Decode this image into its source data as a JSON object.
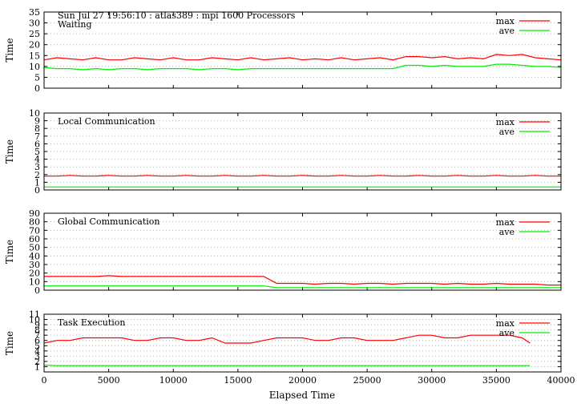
{
  "header": "Sun Jul 27 19:56:10 : atlas389 : mpi 1600 Processors",
  "chart_data": [
    {
      "type": "line",
      "title": "Waiting",
      "ylabel": "Time",
      "xlim": [
        0,
        40000
      ],
      "ylim": [
        0,
        35
      ],
      "yticks": [
        0,
        5,
        10,
        15,
        20,
        25,
        30,
        35
      ],
      "grid": "horizontal dotted",
      "legend_position": "top-right",
      "series": [
        {
          "name": "max",
          "color": "#ff0000",
          "x": [
            0,
            1000,
            2000,
            3000,
            4000,
            5000,
            6000,
            7000,
            8000,
            9000,
            10000,
            11000,
            12000,
            13000,
            14000,
            15000,
            16000,
            17000,
            18000,
            19000,
            20000,
            21000,
            22000,
            23000,
            24000,
            25000,
            26000,
            27000,
            28000,
            29000,
            30000,
            31000,
            32000,
            33000,
            34000,
            35000,
            36000,
            37000,
            38000,
            39000,
            40000
          ],
          "values": [
            13,
            14,
            13.5,
            13,
            14,
            13,
            13,
            14,
            13.5,
            13,
            14,
            13,
            13,
            14,
            13.5,
            13,
            14,
            13,
            13.5,
            14,
            13,
            13.5,
            13,
            14,
            13,
            13.5,
            14,
            13,
            14.5,
            14.5,
            14,
            14.5,
            13.5,
            14,
            13.5,
            15.5,
            15,
            15.5,
            14,
            13.5,
            13
          ]
        },
        {
          "name": "ave",
          "color": "#00ee00",
          "x": [
            0,
            1000,
            2000,
            3000,
            4000,
            5000,
            6000,
            7000,
            8000,
            9000,
            10000,
            11000,
            12000,
            13000,
            14000,
            15000,
            16000,
            17000,
            18000,
            19000,
            20000,
            21000,
            22000,
            23000,
            24000,
            25000,
            26000,
            27000,
            28000,
            29000,
            30000,
            31000,
            32000,
            33000,
            34000,
            35000,
            36000,
            37000,
            38000,
            39000,
            40000
          ],
          "values": [
            9.5,
            9,
            9,
            8.5,
            9,
            8.5,
            9,
            9,
            8.5,
            9,
            9,
            9,
            8.5,
            9,
            9,
            8.5,
            9,
            9,
            9,
            9,
            9,
            9,
            9,
            9,
            9,
            9,
            9,
            9,
            10.5,
            10.5,
            10,
            10.5,
            10,
            10,
            10,
            11,
            11,
            10.5,
            10,
            10,
            9.5
          ]
        }
      ]
    },
    {
      "type": "line",
      "title": "Local Communication",
      "ylabel": "Time",
      "xlim": [
        0,
        40000
      ],
      "ylim": [
        0,
        10
      ],
      "yticks": [
        0,
        1,
        2,
        3,
        4,
        5,
        6,
        7,
        8,
        9,
        10
      ],
      "grid": "horizontal dotted",
      "legend_position": "top-right",
      "series": [
        {
          "name": "max",
          "color": "#ff0000",
          "x": [
            0,
            1000,
            2000,
            3000,
            4000,
            5000,
            6000,
            7000,
            8000,
            9000,
            10000,
            11000,
            12000,
            13000,
            14000,
            15000,
            16000,
            17000,
            18000,
            19000,
            20000,
            21000,
            22000,
            23000,
            24000,
            25000,
            26000,
            27000,
            28000,
            29000,
            30000,
            31000,
            32000,
            33000,
            34000,
            35000,
            36000,
            37000,
            38000,
            39000,
            40000
          ],
          "values": [
            1.8,
            1.8,
            1.9,
            1.8,
            1.8,
            1.9,
            1.8,
            1.8,
            1.9,
            1.8,
            1.8,
            1.9,
            1.8,
            1.8,
            1.9,
            1.8,
            1.8,
            1.9,
            1.8,
            1.8,
            1.9,
            1.8,
            1.8,
            1.9,
            1.8,
            1.8,
            1.9,
            1.8,
            1.8,
            1.9,
            1.8,
            1.8,
            1.9,
            1.8,
            1.8,
            1.9,
            1.8,
            1.8,
            1.9,
            1.8,
            1.8
          ]
        },
        {
          "name": "ave",
          "color": "#00ee00",
          "x": [
            0,
            1000,
            2000,
            3000,
            4000,
            5000,
            6000,
            7000,
            8000,
            9000,
            10000,
            11000,
            12000,
            13000,
            14000,
            15000,
            16000,
            17000,
            18000,
            19000,
            20000,
            21000,
            22000,
            23000,
            24000,
            25000,
            26000,
            27000,
            28000,
            29000,
            30000,
            31000,
            32000,
            33000,
            34000,
            35000,
            36000,
            37000,
            38000,
            39000,
            40000
          ],
          "values": [
            0.4,
            0.4,
            0.4,
            0.4,
            0.4,
            0.4,
            0.4,
            0.4,
            0.4,
            0.4,
            0.4,
            0.4,
            0.4,
            0.4,
            0.4,
            0.4,
            0.4,
            0.4,
            0.4,
            0.4,
            0.4,
            0.4,
            0.4,
            0.4,
            0.4,
            0.4,
            0.4,
            0.4,
            0.4,
            0.4,
            0.4,
            0.4,
            0.4,
            0.4,
            0.4,
            0.4,
            0.4,
            0.4,
            0.4,
            0.4,
            0.4
          ]
        }
      ]
    },
    {
      "type": "line",
      "title": "Global Communication",
      "ylabel": "Time",
      "xlim": [
        0,
        40000
      ],
      "ylim": [
        0,
        90
      ],
      "yticks": [
        0,
        10,
        20,
        30,
        40,
        50,
        60,
        70,
        80,
        90
      ],
      "grid": "horizontal dotted",
      "legend_position": "top-right",
      "series": [
        {
          "name": "max",
          "color": "#ff0000",
          "x": [
            0,
            1000,
            2000,
            3000,
            4000,
            5000,
            6000,
            7000,
            8000,
            9000,
            10000,
            11000,
            12000,
            13000,
            14000,
            15000,
            16000,
            17000,
            18000,
            19000,
            20000,
            21000,
            22000,
            23000,
            24000,
            25000,
            26000,
            27000,
            28000,
            29000,
            30000,
            31000,
            32000,
            33000,
            34000,
            35000,
            36000,
            37000,
            38000,
            39000,
            40000
          ],
          "values": [
            16,
            16,
            16,
            16,
            16,
            17,
            16,
            16,
            16,
            16,
            16,
            16,
            16,
            16,
            16,
            16,
            16,
            16,
            8,
            8,
            8,
            7,
            8,
            8,
            7,
            8,
            8,
            7,
            8,
            8,
            8,
            7,
            8,
            7,
            7,
            8,
            7,
            7,
            7,
            6,
            6
          ]
        },
        {
          "name": "ave",
          "color": "#00ee00",
          "x": [
            0,
            1000,
            2000,
            3000,
            4000,
            5000,
            6000,
            7000,
            8000,
            9000,
            10000,
            11000,
            12000,
            13000,
            14000,
            15000,
            16000,
            17000,
            18000,
            19000,
            20000,
            21000,
            22000,
            23000,
            24000,
            25000,
            26000,
            27000,
            28000,
            29000,
            30000,
            31000,
            32000,
            33000,
            34000,
            35000,
            36000,
            37000,
            38000,
            39000,
            40000
          ],
          "values": [
            5,
            5,
            5,
            5,
            5,
            5,
            5,
            5,
            5,
            5,
            5,
            5,
            5,
            5,
            5,
            5,
            5,
            5,
            3,
            3,
            3,
            3,
            3,
            3,
            3,
            3,
            3,
            3,
            3,
            3,
            3,
            3,
            3,
            3,
            3,
            3,
            3,
            3,
            3,
            3,
            3
          ]
        }
      ]
    },
    {
      "type": "line",
      "title": "Task Execution",
      "ylabel": "Time",
      "xlabel": "Elapsed Time",
      "xlim": [
        0,
        40000
      ],
      "ylim": [
        0,
        11
      ],
      "yticks": [
        1,
        2,
        3,
        4,
        5,
        6,
        7,
        8,
        9,
        10,
        11
      ],
      "xticks": [
        0,
        5000,
        10000,
        15000,
        20000,
        25000,
        30000,
        35000,
        40000
      ],
      "grid": "horizontal dotted",
      "legend_position": "top-right",
      "series": [
        {
          "name": "max",
          "color": "#ff0000",
          "x": [
            0,
            1000,
            2000,
            3000,
            4000,
            5000,
            6000,
            7000,
            8000,
            9000,
            10000,
            11000,
            12000,
            13000,
            14000,
            15000,
            16000,
            17000,
            18000,
            19000,
            20000,
            21000,
            22000,
            23000,
            24000,
            25000,
            26000,
            27000,
            28000,
            29000,
            30000,
            31000,
            32000,
            33000,
            34000,
            35000,
            36000,
            37000,
            37600
          ],
          "values": [
            5.5,
            6,
            6,
            6.5,
            6.5,
            6.5,
            6.5,
            6,
            6,
            6.5,
            6.5,
            6,
            6,
            6.5,
            5.5,
            5.5,
            5.5,
            6,
            6.5,
            6.5,
            6.5,
            6,
            6,
            6.5,
            6.5,
            6,
            6,
            6,
            6.5,
            7,
            7,
            6.5,
            6.5,
            7,
            7,
            7,
            7,
            6.5,
            5.5
          ]
        },
        {
          "name": "ave",
          "color": "#00ee00",
          "x": [
            0,
            1000,
            2000,
            3000,
            4000,
            5000,
            6000,
            7000,
            8000,
            9000,
            10000,
            11000,
            12000,
            13000,
            14000,
            15000,
            16000,
            17000,
            18000,
            19000,
            20000,
            21000,
            22000,
            23000,
            24000,
            25000,
            26000,
            27000,
            28000,
            29000,
            30000,
            31000,
            32000,
            33000,
            34000,
            35000,
            36000,
            37000,
            37600
          ],
          "values": [
            1.3,
            1.2,
            1.2,
            1.2,
            1.2,
            1.2,
            1.2,
            1.2,
            1.2,
            1.2,
            1.2,
            1.2,
            1.2,
            1.2,
            1.2,
            1.2,
            1.2,
            1.2,
            1.2,
            1.2,
            1.2,
            1.2,
            1.2,
            1.2,
            1.2,
            1.2,
            1.2,
            1.2,
            1.2,
            1.2,
            1.2,
            1.2,
            1.2,
            1.2,
            1.2,
            1.2,
            1.2,
            1.2,
            1.2
          ]
        }
      ]
    }
  ]
}
